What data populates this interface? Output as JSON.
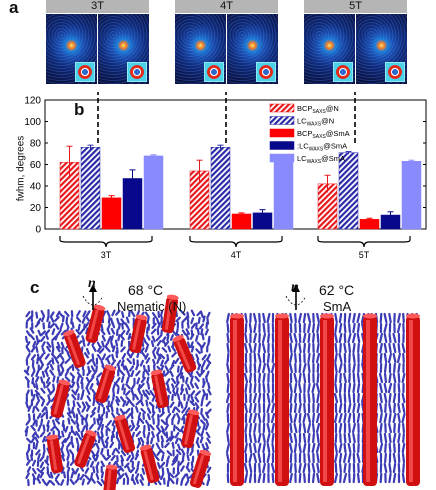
{
  "panels": {
    "a": "a",
    "b": "b",
    "c": "c"
  },
  "panel_a": {
    "fields": [
      "3T",
      "4T",
      "5T"
    ]
  },
  "chart_data": {
    "type": "bar",
    "ylabel": "fwhm, degrees",
    "ylim": [
      0,
      120
    ],
    "yticks": [
      0,
      20,
      40,
      60,
      80,
      100,
      120
    ],
    "categories": [
      "3T",
      "4T",
      "5T"
    ],
    "series": [
      {
        "name": "BCP_SAXS@N",
        "base": "BCP",
        "sub": "SAXS",
        "suffix": "@N",
        "color": "#e8191c",
        "pattern": "hatch-red",
        "values": [
          62,
          54,
          42
        ],
        "errors": [
          15,
          10,
          8
        ]
      },
      {
        "name": "LC_WAXS@N",
        "base": "LC",
        "sub": "WAXS",
        "suffix": "@N",
        "color": "#2b2ba8",
        "pattern": "hatch-blue",
        "values": [
          76,
          76,
          71
        ],
        "errors": [
          2,
          2,
          1
        ]
      },
      {
        "name": "BCP_SAXS@SmA",
        "base": "BCP",
        "sub": "SAXS",
        "suffix": "@SmA",
        "color": "#ff0000",
        "pattern": "solid",
        "values": [
          29,
          14,
          9
        ],
        "errors": [
          2,
          1,
          1
        ]
      },
      {
        "name": "LC_WAXS@SmA",
        "base": ":LC",
        "sub": "WAXS",
        "suffix": "@SmA",
        "color": "#08088c",
        "pattern": "solid",
        "values": [
          47,
          15,
          13
        ],
        "errors": [
          8,
          3,
          3
        ]
      },
      {
        "name": "LC_WAXS@SmA",
        "base": "LC",
        "sub": "WAXS",
        "suffix": "@SmA",
        "color": "#8a8aff",
        "pattern": "solid",
        "values": [
          68,
          64,
          63
        ],
        "errors": [
          1,
          1,
          1
        ]
      }
    ]
  },
  "panel_c": {
    "left": {
      "director": "n",
      "temperature": "68 °C",
      "phase": "Nematic (N)"
    },
    "right": {
      "director": "n",
      "temperature": "62 °C",
      "phase": "SmA"
    }
  }
}
